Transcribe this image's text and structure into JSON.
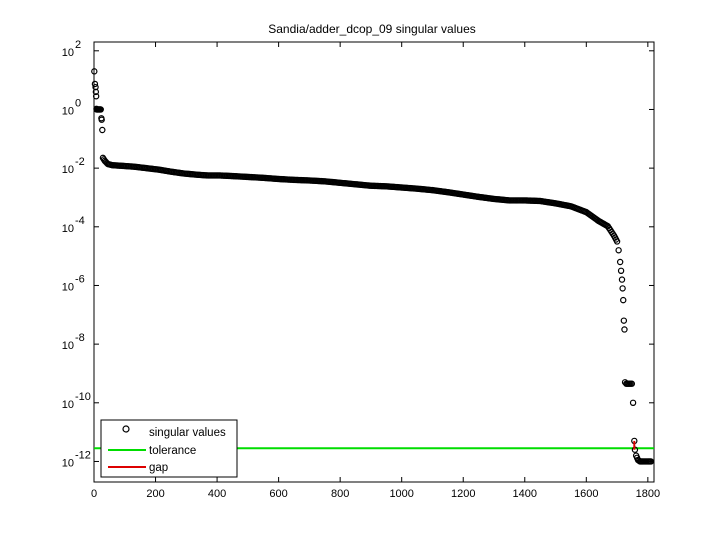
{
  "chart_data": {
    "type": "scatter",
    "title": "Sandia/adder_dcop_09 singular values",
    "xlabel": "",
    "ylabel": "",
    "xlim": [
      0,
      1820
    ],
    "ylim_log10": [
      -12.7,
      2.3
    ],
    "y_scale": "log",
    "grid": false,
    "x_ticks": [
      "0",
      "200",
      "400",
      "600",
      "800",
      "1000",
      "1200",
      "1400",
      "1600",
      "1800"
    ],
    "y_ticks": [
      {
        "base": "10",
        "exp": "2"
      },
      {
        "base": "10",
        "exp": "0"
      },
      {
        "base": "10",
        "exp": "-2"
      },
      {
        "base": "10",
        "exp": "-4"
      },
      {
        "base": "10",
        "exp": "-6"
      },
      {
        "base": "10",
        "exp": "-8"
      },
      {
        "base": "10",
        "exp": "-10"
      },
      {
        "base": "10",
        "exp": "-12"
      }
    ],
    "series": [
      {
        "name": "singular values",
        "marker": "circle",
        "color": "#000000",
        "points": [
          [
            1,
            1.3
          ],
          [
            3,
            0.87
          ],
          [
            5,
            0.76
          ],
          [
            6,
            0.6
          ],
          [
            7,
            0.45
          ],
          [
            8,
            0.02
          ],
          [
            9,
            0.0
          ],
          [
            10,
            0.0
          ],
          [
            12,
            0.0
          ],
          [
            14,
            0.0
          ],
          [
            16,
            0.0
          ],
          [
            18,
            0.0
          ],
          [
            20,
            0.0
          ],
          [
            22,
            0.0
          ],
          [
            24,
            -0.3
          ],
          [
            25,
            -0.35
          ],
          [
            27,
            -0.7
          ],
          [
            29,
            -1.65
          ],
          [
            35,
            -1.75
          ],
          [
            45,
            -1.86
          ],
          [
            60,
            -1.9
          ],
          [
            90,
            -1.92
          ],
          [
            130,
            -1.95
          ],
          [
            170,
            -2.0
          ],
          [
            210,
            -2.05
          ],
          [
            250,
            -2.12
          ],
          [
            290,
            -2.18
          ],
          [
            330,
            -2.22
          ],
          [
            370,
            -2.25
          ],
          [
            410,
            -2.25
          ],
          [
            450,
            -2.27
          ],
          [
            500,
            -2.3
          ],
          [
            550,
            -2.33
          ],
          [
            600,
            -2.37
          ],
          [
            650,
            -2.4
          ],
          [
            700,
            -2.42
          ],
          [
            750,
            -2.45
          ],
          [
            800,
            -2.5
          ],
          [
            850,
            -2.55
          ],
          [
            900,
            -2.6
          ],
          [
            950,
            -2.62
          ],
          [
            1000,
            -2.66
          ],
          [
            1050,
            -2.7
          ],
          [
            1100,
            -2.75
          ],
          [
            1150,
            -2.82
          ],
          [
            1200,
            -2.9
          ],
          [
            1250,
            -2.98
          ],
          [
            1300,
            -3.05
          ],
          [
            1350,
            -3.1
          ],
          [
            1400,
            -3.1
          ],
          [
            1450,
            -3.12
          ],
          [
            1500,
            -3.2
          ],
          [
            1550,
            -3.3
          ],
          [
            1600,
            -3.5
          ],
          [
            1640,
            -3.8
          ],
          [
            1670,
            -3.98
          ],
          [
            1690,
            -4.3
          ],
          [
            1700,
            -4.5
          ],
          [
            1705,
            -4.8
          ],
          [
            1710,
            -5.2
          ],
          [
            1713,
            -5.5
          ],
          [
            1716,
            -5.8
          ],
          [
            1718,
            -6.1
          ],
          [
            1720,
            -6.5
          ],
          [
            1722,
            -7.2
          ],
          [
            1724,
            -7.5
          ],
          [
            1726,
            -9.3
          ],
          [
            1730,
            -9.35
          ],
          [
            1740,
            -9.35
          ],
          [
            1748,
            -9.35
          ],
          [
            1752,
            -10.0
          ],
          [
            1756,
            -11.3
          ],
          [
            1758,
            -11.6
          ],
          [
            1762,
            -11.8
          ],
          [
            1768,
            -11.95
          ],
          [
            1775,
            -12.0
          ],
          [
            1785,
            -12.0
          ],
          [
            1800,
            -12.0
          ],
          [
            1810,
            -12.0
          ]
        ]
      },
      {
        "name": "tolerance",
        "type": "hline",
        "color": "#00dd00",
        "y_log10": -11.55
      },
      {
        "name": "gap",
        "type": "segment",
        "color": "#dd0000",
        "x": [
          1756,
          1756
        ],
        "y_log10": [
          -11.3,
          -11.6
        ]
      }
    ],
    "legend": {
      "placement": "bottom-left",
      "entries": [
        "singular values",
        "tolerance",
        "gap"
      ]
    }
  }
}
